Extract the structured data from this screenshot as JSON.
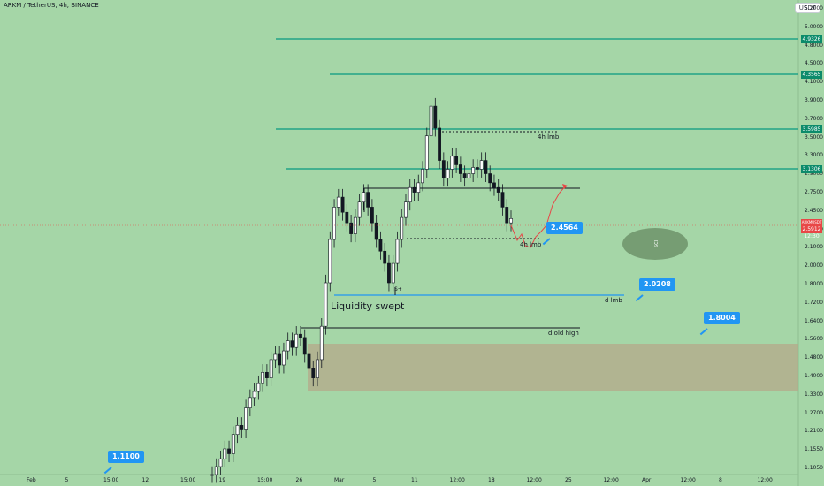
{
  "title": "ARKM / TetherUS, 4h, BINANCE",
  "currency_button": "USDT",
  "y_ticks": [
    "5.2000",
    "5.0000",
    "4.8000",
    "4.5000",
    "4.1000",
    "3.9000",
    "3.7000",
    "3.5000",
    "3.3000",
    "2.9000",
    "2.7500",
    "2.4500",
    "2.3000",
    "2.1000",
    "2.0000",
    "1.8000",
    "1.7200",
    "1.6400",
    "1.5600",
    "1.4800",
    "1.4000",
    "1.3300",
    "1.2700",
    "1.2100",
    "1.1550",
    "1.1050"
  ],
  "x_ticks": [
    "Feb",
    "5",
    "15:00",
    "12",
    "15:00",
    "19",
    "15:00",
    "26",
    "Mar",
    "5",
    "11",
    "12:00",
    "18",
    "12:00",
    "25",
    "12:00",
    "Apr",
    "12:00",
    "8",
    "12:00"
  ],
  "level_badges": [
    "4.9326",
    "4.3565",
    "3.5985",
    "3.1306"
  ],
  "current_price": {
    "value": "2.5912",
    "label": "ARKMUSDT",
    "time": "12:30"
  },
  "annotations": {
    "lmb_4h_top": "4h lmb",
    "lmb_4h_bottom": "4h lmb",
    "d_lmb": "d lmb",
    "d_old_high": "d old high",
    "liquidity": "Liquidity swept",
    "s_plus": "S+",
    "ellipse_text": "SCI"
  },
  "callouts": [
    "1.1100",
    "2.4564",
    "2.0208",
    "1.8004"
  ],
  "colors": {
    "background": "#a5d6a7",
    "level_line": "#089981",
    "zone": "#b5a88a",
    "callout": "#2196f3",
    "price_badge": "#e84747",
    "path": "#e84747"
  },
  "chart_data": {
    "type": "candlestick",
    "symbol": "ARKM/USDT",
    "timeframe": "4h",
    "levels": [
      4.9326,
      4.3565,
      3.5985,
      3.1306,
      2.95
    ],
    "zone": [
      1.45,
      1.7
    ],
    "close": [
      1.02,
      1.05,
      1.08,
      1.12,
      1.1,
      1.18,
      1.22,
      1.2,
      1.3,
      1.35,
      1.38,
      1.42,
      1.48,
      1.45,
      1.55,
      1.58,
      1.52,
      1.6,
      1.66,
      1.62,
      1.7,
      1.68,
      1.58,
      1.5,
      1.45,
      1.55,
      1.75,
      2.05,
      2.4,
      2.7,
      2.8,
      2.65,
      2.55,
      2.45,
      2.6,
      2.75,
      2.85,
      2.7,
      2.55,
      2.4,
      2.3,
      2.2,
      2.05,
      2.2,
      2.4,
      2.6,
      2.75,
      2.9,
      2.85,
      2.95,
      3.1,
      3.5,
      3.9,
      3.6,
      3.2,
      3.0,
      3.1,
      3.25,
      3.15,
      3.05,
      3.0,
      3.05,
      3.12,
      3.1,
      3.2,
      3.05,
      2.95,
      2.9,
      2.85,
      2.7,
      2.55,
      2.59
    ]
  }
}
